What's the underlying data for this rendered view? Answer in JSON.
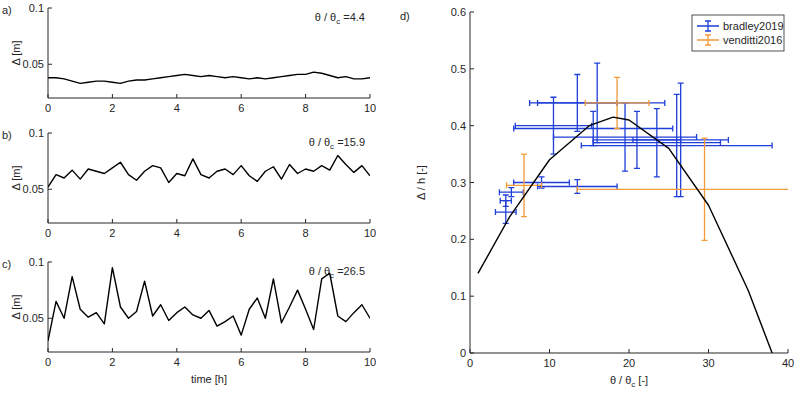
{
  "chart_data": [
    {
      "type": "line",
      "panel_label": "a)",
      "annotation": [
        "θ / θ",
        "c",
        " =4.4"
      ],
      "ylabel": "Δ [m]",
      "xlim": [
        0,
        10
      ],
      "xticks": [
        0,
        2,
        4,
        6,
        8,
        10
      ],
      "ylim": [
        0.02,
        0.1
      ],
      "yticks": [
        0.05,
        0.1
      ],
      "color": "#000000",
      "x": [
        0,
        0.25,
        0.5,
        0.75,
        1,
        1.25,
        1.5,
        1.75,
        2,
        2.25,
        2.5,
        2.75,
        3,
        3.25,
        3.5,
        3.75,
        4,
        4.25,
        4.5,
        4.75,
        5,
        5.25,
        5.5,
        5.75,
        6,
        6.25,
        6.5,
        6.75,
        7,
        7.25,
        7.5,
        7.75,
        8,
        8.25,
        8.5,
        8.75,
        9,
        9.25,
        9.5,
        9.75,
        10
      ],
      "values": [
        0.038,
        0.038,
        0.037,
        0.035,
        0.033,
        0.034,
        0.035,
        0.035,
        0.034,
        0.033,
        0.035,
        0.036,
        0.036,
        0.037,
        0.038,
        0.039,
        0.04,
        0.041,
        0.04,
        0.039,
        0.04,
        0.039,
        0.038,
        0.039,
        0.038,
        0.037,
        0.038,
        0.037,
        0.038,
        0.039,
        0.04,
        0.041,
        0.041,
        0.043,
        0.042,
        0.04,
        0.038,
        0.039,
        0.037,
        0.037,
        0.038
      ]
    },
    {
      "type": "line",
      "panel_label": "b)",
      "annotation": [
        "θ / θ",
        "c",
        " =15.9"
      ],
      "ylabel": "Δ [m]",
      "xlim": [
        0,
        10
      ],
      "xticks": [
        0,
        2,
        4,
        6,
        8,
        10
      ],
      "ylim": [
        0.02,
        0.1
      ],
      "yticks": [
        0.05,
        0.1
      ],
      "color": "#000000",
      "x": [
        0,
        0.25,
        0.5,
        0.75,
        1,
        1.25,
        1.5,
        1.75,
        2,
        2.25,
        2.5,
        2.75,
        3,
        3.25,
        3.5,
        3.75,
        4,
        4.25,
        4.5,
        4.75,
        5,
        5.25,
        5.5,
        5.75,
        6,
        6.25,
        6.5,
        6.75,
        7,
        7.25,
        7.5,
        7.75,
        8,
        8.25,
        8.5,
        8.75,
        9,
        9.25,
        9.5,
        9.75,
        10
      ],
      "values": [
        0.052,
        0.063,
        0.06,
        0.067,
        0.059,
        0.068,
        0.066,
        0.064,
        0.069,
        0.074,
        0.063,
        0.058,
        0.066,
        0.071,
        0.069,
        0.056,
        0.064,
        0.062,
        0.077,
        0.063,
        0.06,
        0.066,
        0.068,
        0.063,
        0.071,
        0.062,
        0.057,
        0.066,
        0.07,
        0.059,
        0.072,
        0.064,
        0.068,
        0.066,
        0.071,
        0.067,
        0.08,
        0.072,
        0.065,
        0.071,
        0.062
      ]
    },
    {
      "type": "line",
      "panel_label": "c)",
      "annotation": [
        "θ / θ",
        "c",
        " =26.5"
      ],
      "ylabel": "Δ [m]",
      "xlabel": "time [h]",
      "xlim": [
        0,
        10
      ],
      "xticks": [
        0,
        2,
        4,
        6,
        8,
        10
      ],
      "ylim": [
        0.02,
        0.1
      ],
      "yticks": [
        0.05,
        0.1
      ],
      "color": "#000000",
      "x": [
        0,
        0.25,
        0.5,
        0.75,
        1,
        1.25,
        1.5,
        1.75,
        2,
        2.25,
        2.5,
        2.75,
        3,
        3.25,
        3.5,
        3.75,
        4,
        4.25,
        4.5,
        4.75,
        5,
        5.25,
        5.5,
        5.75,
        6,
        6.25,
        6.5,
        6.75,
        7,
        7.25,
        7.5,
        7.75,
        8,
        8.25,
        8.5,
        8.75,
        9,
        9.25,
        9.5,
        9.75,
        10
      ],
      "values": [
        0.03,
        0.065,
        0.05,
        0.087,
        0.058,
        0.051,
        0.055,
        0.045,
        0.095,
        0.06,
        0.05,
        0.056,
        0.083,
        0.052,
        0.062,
        0.048,
        0.055,
        0.06,
        0.053,
        0.05,
        0.057,
        0.043,
        0.047,
        0.052,
        0.035,
        0.058,
        0.068,
        0.05,
        0.085,
        0.046,
        0.06,
        0.075,
        0.058,
        0.04,
        0.085,
        0.09,
        0.052,
        0.047,
        0.055,
        0.062,
        0.05
      ]
    },
    {
      "type": "scatter",
      "panel_label": "d)",
      "xlabel": [
        "θ / θ",
        "c",
        " [-]"
      ],
      "ylabel": "Δ / h [-]",
      "xlim": [
        0,
        40
      ],
      "xticks": [
        0,
        10,
        20,
        30,
        40
      ],
      "ylim": [
        0,
        0.6
      ],
      "yticks": [
        0,
        0.1,
        0.2,
        0.3,
        0.4,
        0.5,
        0.6
      ],
      "legend": "top-right",
      "series": [
        {
          "name": "bradley2019",
          "color": "#1f3fd8",
          "marker": "none",
          "x": [
            4.5,
            4.5,
            5.2,
            9,
            13.5,
            10.5,
            13.5,
            16,
            15.5,
            19.5,
            21,
            23.5,
            26,
            26.5
          ],
          "values": [
            0.248,
            0.268,
            0.283,
            0.3,
            0.293,
            0.4,
            0.44,
            0.44,
            0.395,
            0.38,
            0.375,
            0.37,
            0.365,
            0.375
          ],
          "xerr": [
            1.3,
            0.7,
            1.5,
            3.5,
            5,
            4.8,
            5,
            8.5,
            10,
            9,
            5.5,
            8,
            12,
            6
          ],
          "yerr": [
            0.02,
            0.01,
            0.008,
            0.01,
            0.012,
            0.05,
            0.05,
            0.07,
            0.03,
            0.06,
            0.05,
            0.06,
            0.09,
            0.1
          ]
        },
        {
          "name": "venditti2016",
          "color": "#f39b3a",
          "marker": "none",
          "x": [
            6.8,
            18.5,
            29.5
          ],
          "values": [
            0.295,
            0.44,
            0.288
          ],
          "xerr": [
            2.2,
            4,
            16
          ],
          "yerr": [
            0.055,
            0.045,
            0.09
          ]
        },
        {
          "type": "line",
          "color": "#000000",
          "x": [
            1,
            5,
            10,
            15,
            18,
            20,
            25,
            30,
            35,
            38
          ],
          "values": [
            0.14,
            0.24,
            0.34,
            0.4,
            0.415,
            0.41,
            0.36,
            0.26,
            0.11,
            0
          ]
        }
      ]
    }
  ]
}
